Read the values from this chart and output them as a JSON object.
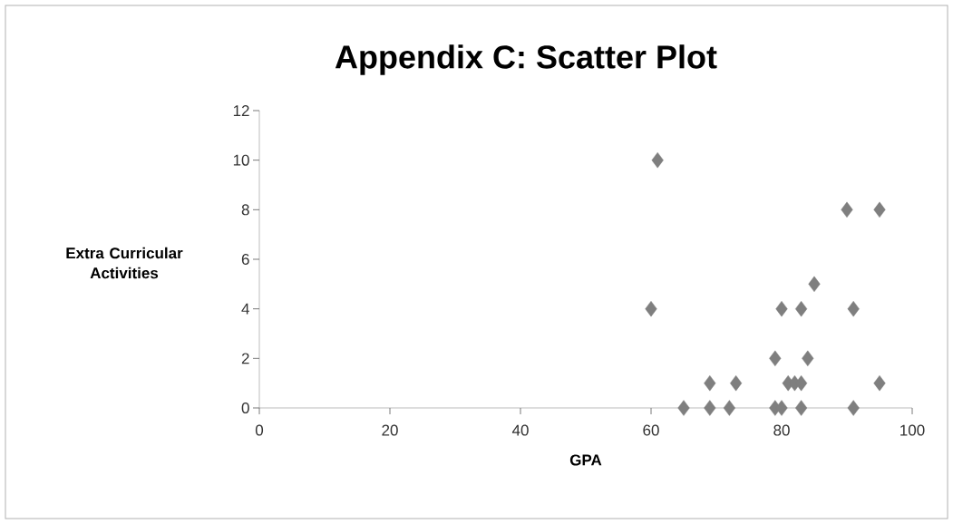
{
  "chart_data": {
    "type": "scatter",
    "title": "Appendix C: Scatter Plot",
    "xlabel": "GPA",
    "ylabel": "Extra Curricular Activities",
    "x": [
      65,
      69,
      72,
      79,
      80,
      83,
      91,
      69,
      73,
      81,
      82,
      83,
      95,
      79,
      84,
      60,
      80,
      83,
      91,
      85,
      90,
      95,
      61
    ],
    "values": [
      0,
      0,
      0,
      0,
      0,
      0,
      0,
      1,
      1,
      1,
      1,
      1,
      1,
      2,
      2,
      4,
      4,
      4,
      4,
      5,
      8,
      8,
      10
    ],
    "color": "#7f7f7f",
    "marker": "diamond",
    "xlim": [
      0,
      100
    ],
    "xticks": [
      0,
      20,
      40,
      60,
      80,
      100
    ],
    "ylim": [
      0,
      12
    ],
    "yticks": [
      0,
      2,
      4,
      6,
      8,
      10,
      12
    ],
    "grid": false
  }
}
